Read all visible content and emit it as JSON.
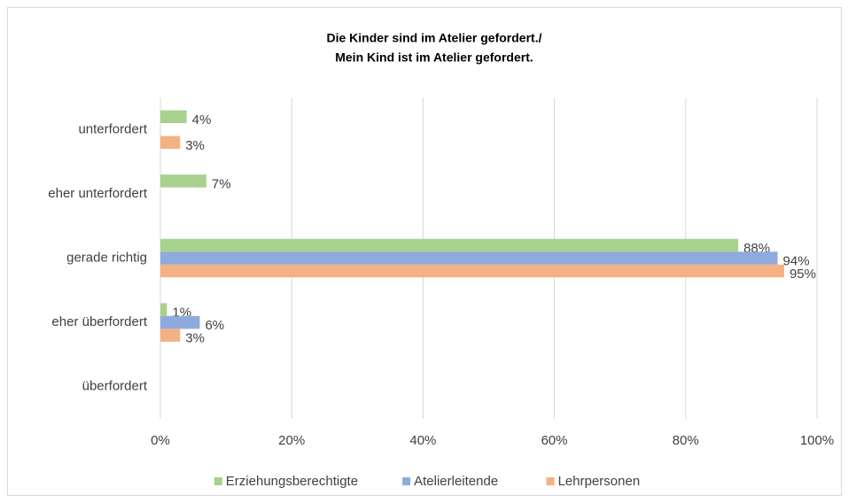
{
  "chart_data": {
    "type": "hbar",
    "title": [
      "Die Kinder sind im Atelier gefordert./",
      "Mein Kind ist im Atelier gefordert."
    ],
    "categories": [
      "unterfordert",
      "eher unterfordert",
      "gerade richtig",
      "eher überfordert",
      "überfordert"
    ],
    "series": [
      {
        "name": "Erziehungsberechtigte",
        "color": "#a9d18e",
        "values": [
          4,
          7,
          88,
          1,
          null
        ],
        "value_labels": [
          "4%",
          "7%",
          "88%",
          "1%",
          null
        ]
      },
      {
        "name": "Atelierleitende",
        "color": "#8faadc",
        "values": [
          null,
          null,
          94,
          6,
          null
        ],
        "value_labels": [
          null,
          null,
          "94%",
          "6%",
          null
        ]
      },
      {
        "name": "Lehrpersonen",
        "color": "#f4b183",
        "values": [
          3,
          null,
          95,
          3,
          null
        ],
        "value_labels": [
          "3%",
          null,
          "95%",
          "3%",
          null
        ]
      }
    ],
    "xlim": [
      0,
      100
    ],
    "xticks": [
      {
        "value": 0,
        "label": "0%"
      },
      {
        "value": 20,
        "label": "20%"
      },
      {
        "value": 40,
        "label": "40%"
      },
      {
        "value": 60,
        "label": "60%"
      },
      {
        "value": 80,
        "label": "80%"
      },
      {
        "value": 100,
        "label": "100%"
      }
    ],
    "grid": true,
    "legend": "bottom"
  }
}
